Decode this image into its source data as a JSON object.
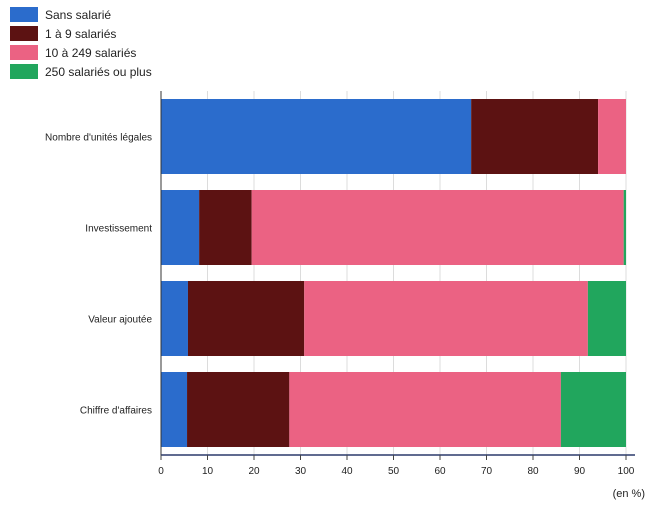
{
  "chart_data": {
    "type": "bar",
    "orientation": "horizontal",
    "stacked": true,
    "categories": [
      "Nombre d'unités légales",
      "Investissement",
      "Valeur ajoutée",
      "Chiffre d'affaires"
    ],
    "series": [
      {
        "name": "Sans salarié",
        "color": "#2B6CCC",
        "values": [
          66.7,
          8.2,
          5.8,
          5.6
        ]
      },
      {
        "name": "1 à 9 salariés",
        "color": "#5C1212",
        "values": [
          27.3,
          11.3,
          25.0,
          22.0
        ]
      },
      {
        "name": "10 à 249 salariés",
        "color": "#EB6283",
        "values": [
          6.0,
          80.0,
          61.0,
          58.4
        ]
      },
      {
        "name": "250 salariés ou plus",
        "color": "#21A65D",
        "values": [
          0.0,
          0.5,
          8.2,
          14.0
        ]
      }
    ],
    "xlim": [
      0,
      100
    ],
    "x_ticks": [
      "0",
      "10",
      "20",
      "30",
      "40",
      "50",
      "60",
      "70",
      "80",
      "90",
      "100"
    ],
    "unit_label": "(en %)",
    "grid": true,
    "legend_position": "top-left"
  }
}
